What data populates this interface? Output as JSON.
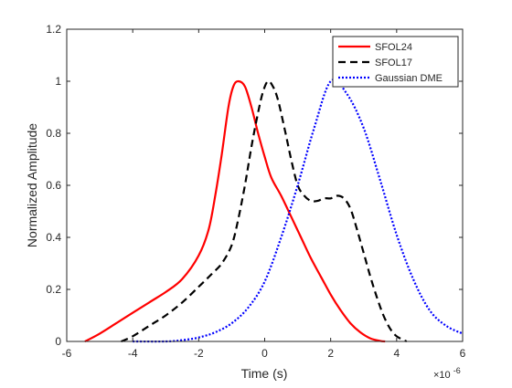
{
  "chart_data": {
    "type": "line",
    "title": "",
    "xlabel": "Time (s)",
    "ylabel": "Normalized Amplitude",
    "x_exponent_label": "×10",
    "x_exponent_power": "-6",
    "xlim": [
      -6,
      6
    ],
    "ylim": [
      0,
      1.2
    ],
    "xticks": [
      -6,
      -4,
      -2,
      0,
      2,
      4,
      6
    ],
    "yticks": [
      0,
      0.2,
      0.4,
      0.6,
      0.8,
      1,
      1.2
    ],
    "x_tick_labels": [
      "-6",
      "-4",
      "-2",
      "0",
      "2",
      "4",
      "6"
    ],
    "y_tick_labels": [
      "0",
      "0.2",
      "0.4",
      "0.6",
      "0.8",
      "1",
      "1.2"
    ],
    "grid": false,
    "legend_position": "top-right",
    "series": [
      {
        "name": "SFOL24",
        "color": "#ff0000",
        "style": "solid",
        "x": [
          -5.45,
          -5.0,
          -4.5,
          -4.0,
          -3.5,
          -3.0,
          -2.5,
          -2.0,
          -1.7,
          -1.5,
          -1.3,
          -1.1,
          -0.95,
          -0.8,
          -0.6,
          -0.4,
          -0.2,
          0.0,
          0.2,
          0.5,
          0.8,
          1.1,
          1.4,
          1.7,
          2.0,
          2.3,
          2.6,
          2.9,
          3.2,
          3.5,
          3.65
        ],
        "y": [
          0.0,
          0.03,
          0.07,
          0.11,
          0.15,
          0.19,
          0.24,
          0.33,
          0.43,
          0.56,
          0.72,
          0.9,
          0.98,
          1.0,
          0.98,
          0.9,
          0.8,
          0.71,
          0.63,
          0.56,
          0.48,
          0.4,
          0.32,
          0.25,
          0.18,
          0.12,
          0.07,
          0.035,
          0.012,
          0.002,
          0.0
        ]
      },
      {
        "name": "SFOL17",
        "color": "#000000",
        "style": "dashed",
        "x": [
          -4.35,
          -4.0,
          -3.5,
          -3.0,
          -2.5,
          -2.0,
          -1.6,
          -1.3,
          -1.0,
          -0.8,
          -0.6,
          -0.4,
          -0.2,
          -0.05,
          0.1,
          0.25,
          0.4,
          0.6,
          0.8,
          1.0,
          1.2,
          1.4,
          1.6,
          1.8,
          2.0,
          2.2,
          2.4,
          2.6,
          2.8,
          3.0,
          3.2,
          3.4,
          3.6,
          3.8,
          4.0,
          4.3
        ],
        "y": [
          0.0,
          0.02,
          0.06,
          0.1,
          0.15,
          0.21,
          0.26,
          0.3,
          0.37,
          0.47,
          0.6,
          0.75,
          0.88,
          0.96,
          1.0,
          0.98,
          0.93,
          0.82,
          0.7,
          0.6,
          0.56,
          0.54,
          0.54,
          0.55,
          0.55,
          0.56,
          0.55,
          0.51,
          0.43,
          0.34,
          0.25,
          0.17,
          0.1,
          0.05,
          0.02,
          0.0
        ]
      },
      {
        "name": "Gaussian DME",
        "color": "#0000ff",
        "style": "dotted",
        "x": [
          -4.0,
          -3.0,
          -2.5,
          -2.0,
          -1.5,
          -1.0,
          -0.5,
          0.0,
          0.5,
          1.0,
          1.5,
          2.0,
          2.5,
          3.0,
          3.5,
          4.0,
          4.5,
          5.0,
          5.5,
          6.0
        ],
        "y": [
          0.0,
          0.0,
          0.005,
          0.015,
          0.035,
          0.07,
          0.13,
          0.23,
          0.4,
          0.6,
          0.82,
          1.0,
          0.95,
          0.82,
          0.62,
          0.41,
          0.24,
          0.12,
          0.06,
          0.03
        ]
      }
    ]
  }
}
